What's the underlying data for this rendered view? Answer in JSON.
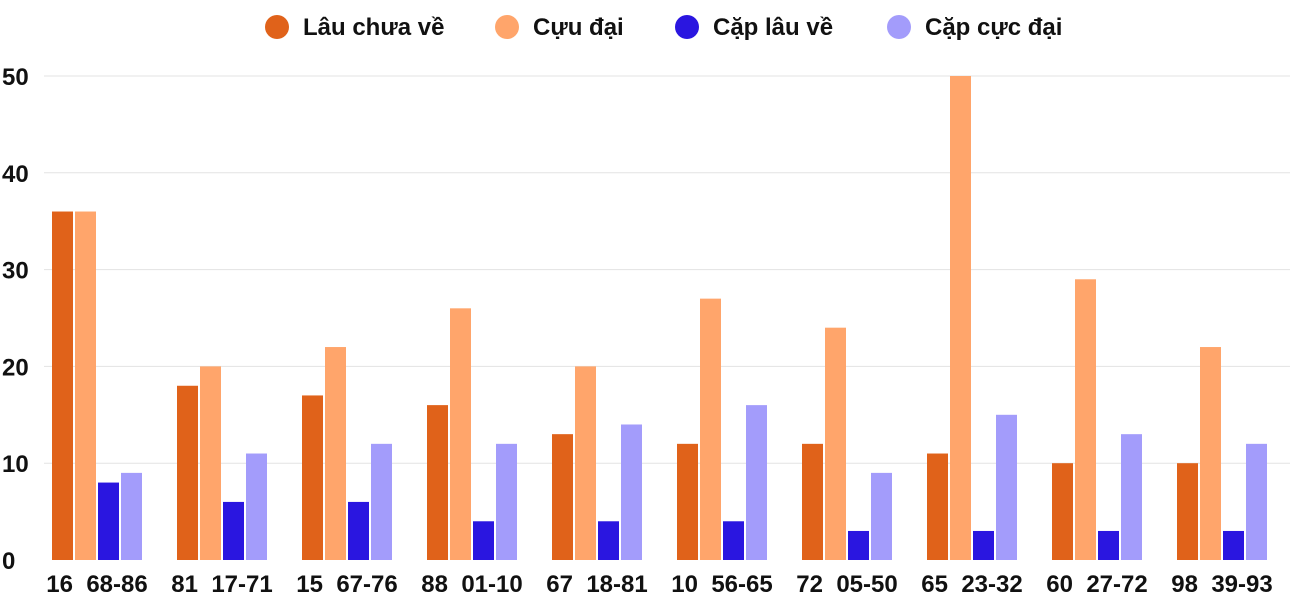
{
  "chart_data": {
    "type": "bar",
    "title": "",
    "xlabel": "",
    "ylabel": "",
    "ylim": [
      0,
      50
    ],
    "yticks": [
      0,
      10,
      20,
      30,
      40,
      50
    ],
    "grid": true,
    "legend_position": "top-center",
    "categories": [
      "16  68-86",
      "81  17-71",
      "15  67-76",
      "88  01-10",
      "67  18-81",
      "10  56-65",
      "72  05-50",
      "65  23-32",
      "60  27-72",
      "98  39-93"
    ],
    "series": [
      {
        "name": "Lâu chưa về",
        "color": "#e0621a",
        "values": [
          36,
          18,
          17,
          16,
          13,
          12,
          12,
          11,
          10,
          10
        ]
      },
      {
        "name": "Cựu đại",
        "color": "#ffa56b",
        "values": [
          36,
          20,
          22,
          26,
          20,
          27,
          24,
          50,
          29,
          22
        ]
      },
      {
        "name": "Cặp lâu về",
        "color": "#2a16e0",
        "values": [
          8,
          6,
          6,
          4,
          4,
          4,
          3,
          3,
          3,
          3
        ]
      },
      {
        "name": "Cặp cực đại",
        "color": "#a39cfb",
        "values": [
          9,
          11,
          12,
          12,
          14,
          16,
          9,
          15,
          13,
          12
        ]
      }
    ]
  }
}
